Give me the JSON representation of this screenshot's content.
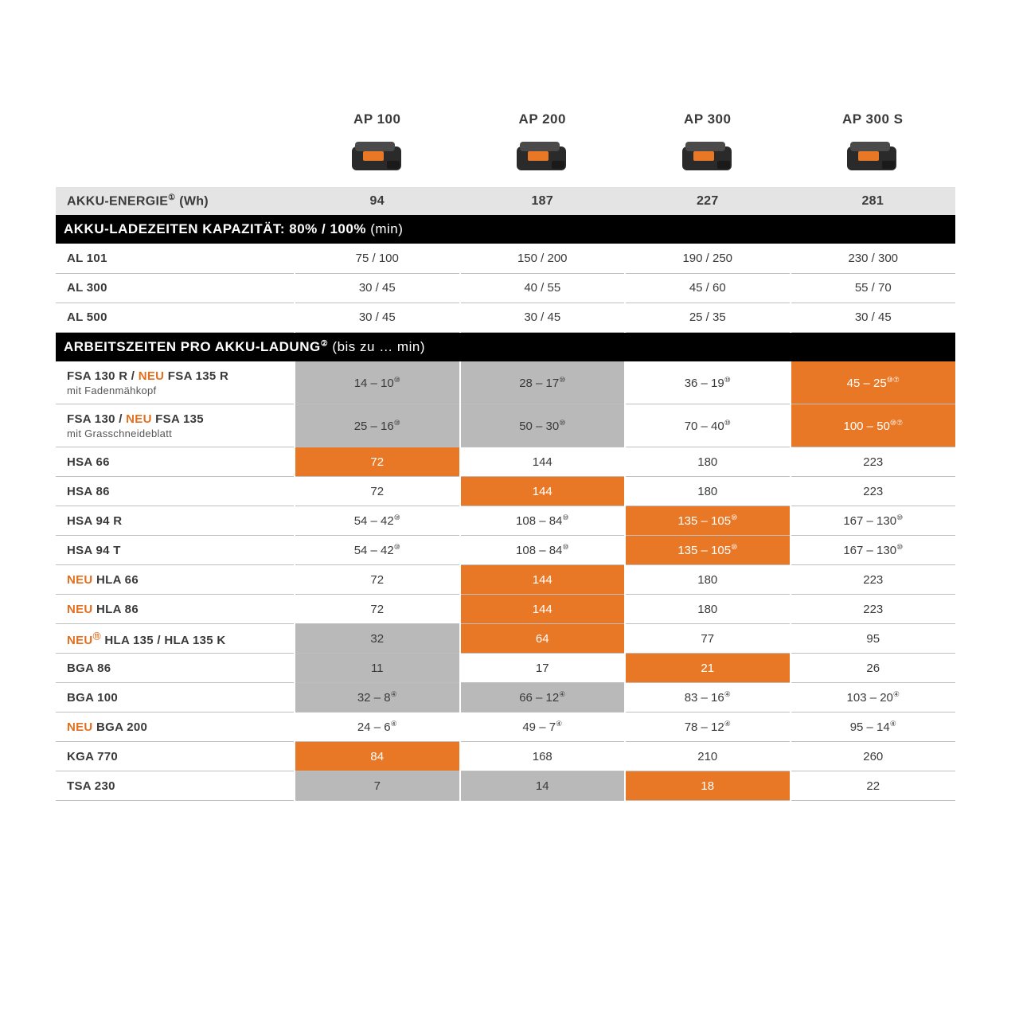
{
  "colors": {
    "orange": "#e36f1e",
    "orange_bg": "#e97826",
    "gray_bg": "#b9b9b9",
    "section_light": "#e4e4e4",
    "border": "#bfbfbf",
    "black": "#000000",
    "white": "#ffffff",
    "text": "#3a3a3a"
  },
  "headers": [
    "AP 100",
    "AP 200",
    "AP 300",
    "AP 300 S"
  ],
  "energy": {
    "label": "AKKU-ENERGIE",
    "sup": "①",
    "unit": "(Wh)",
    "values": [
      "94",
      "187",
      "227",
      "281"
    ]
  },
  "section_charge": {
    "title": "AKKU-LADEZEITEN KAPAZITÄT: 80% / 100%",
    "unit": "(min)"
  },
  "charge_rows": [
    {
      "label": "AL 101",
      "values": [
        "75 / 100",
        "150 / 200",
        "190 / 250",
        "230 / 300"
      ]
    },
    {
      "label": "AL 300",
      "values": [
        "30 / 45",
        "40 / 55",
        "45 / 60",
        "55 / 70"
      ]
    },
    {
      "label": "AL 500",
      "values": [
        "30 / 45",
        "30 / 45",
        "25 / 35",
        "30 / 45"
      ]
    }
  ],
  "section_work": {
    "title": "ARBEITSZEITEN PRO AKKU-LADUNG",
    "sup": "②",
    "unit": "(bis zu … min)"
  },
  "work_rows": [
    {
      "tall": true,
      "label_parts": [
        {
          "t": "FSA 130 R / "
        },
        {
          "t": "NEU",
          "neu": true
        },
        {
          "t": " FSA 135 R"
        }
      ],
      "sub": "mit Fadenmähkopf",
      "cells": [
        {
          "v": "14 – 10",
          "sup": "⑩",
          "bg": "gray"
        },
        {
          "v": "28 – 17",
          "sup": "⑩",
          "bg": "gray"
        },
        {
          "v": "36 – 19",
          "sup": "⑩",
          "bg": "white"
        },
        {
          "v": "45 – 25",
          "sup": "⑩⑦",
          "bg": "orange"
        }
      ]
    },
    {
      "tall": true,
      "label_parts": [
        {
          "t": "FSA 130 / "
        },
        {
          "t": "NEU",
          "neu": true
        },
        {
          "t": " FSA 135"
        }
      ],
      "sub": "mit Grasschneideblatt",
      "cells": [
        {
          "v": "25 – 16",
          "sup": "⑩",
          "bg": "gray"
        },
        {
          "v": "50 – 30",
          "sup": "⑩",
          "bg": "gray"
        },
        {
          "v": "70 – 40",
          "sup": "⑩",
          "bg": "white"
        },
        {
          "v": "100 – 50",
          "sup": "⑩⑦",
          "bg": "orange"
        }
      ]
    },
    {
      "label_parts": [
        {
          "t": "HSA 66"
        }
      ],
      "cells": [
        {
          "v": "72",
          "bg": "orange"
        },
        {
          "v": "144",
          "bg": "white"
        },
        {
          "v": "180",
          "bg": "white"
        },
        {
          "v": "223",
          "bg": "white"
        }
      ]
    },
    {
      "label_parts": [
        {
          "t": "HSA 86"
        }
      ],
      "cells": [
        {
          "v": "72",
          "bg": "white"
        },
        {
          "v": "144",
          "bg": "orange"
        },
        {
          "v": "180",
          "bg": "white"
        },
        {
          "v": "223",
          "bg": "white"
        }
      ]
    },
    {
      "label_parts": [
        {
          "t": "HSA 94 R"
        }
      ],
      "cells": [
        {
          "v": "54 – 42",
          "sup": "⑩",
          "bg": "white"
        },
        {
          "v": "108 – 84",
          "sup": "⑩",
          "bg": "white"
        },
        {
          "v": "135 – 105",
          "sup": "⑩",
          "bg": "orange"
        },
        {
          "v": "167 – 130",
          "sup": "⑩",
          "bg": "white"
        }
      ]
    },
    {
      "label_parts": [
        {
          "t": "HSA 94 T"
        }
      ],
      "cells": [
        {
          "v": "54 – 42",
          "sup": "⑩",
          "bg": "white"
        },
        {
          "v": "108 – 84",
          "sup": "⑩",
          "bg": "white"
        },
        {
          "v": "135 – 105",
          "sup": "⑩",
          "bg": "orange"
        },
        {
          "v": "167 – 130",
          "sup": "⑩",
          "bg": "white"
        }
      ]
    },
    {
      "label_parts": [
        {
          "t": "NEU",
          "neu": true
        },
        {
          "t": " HLA 66"
        }
      ],
      "cells": [
        {
          "v": "72",
          "bg": "white"
        },
        {
          "v": "144",
          "bg": "orange"
        },
        {
          "v": "180",
          "bg": "white"
        },
        {
          "v": "223",
          "bg": "white"
        }
      ]
    },
    {
      "label_parts": [
        {
          "t": "NEU",
          "neu": true
        },
        {
          "t": " HLA 86"
        }
      ],
      "cells": [
        {
          "v": "72",
          "bg": "white"
        },
        {
          "v": "144",
          "bg": "orange"
        },
        {
          "v": "180",
          "bg": "white"
        },
        {
          "v": "223",
          "bg": "white"
        }
      ]
    },
    {
      "label_parts": [
        {
          "t": "NEU",
          "neu": true,
          "sup": "⑪"
        },
        {
          "t": " HLA 135 /  HLA 135 K"
        }
      ],
      "cells": [
        {
          "v": "32",
          "bg": "gray"
        },
        {
          "v": "64",
          "bg": "orange"
        },
        {
          "v": "77",
          "bg": "white"
        },
        {
          "v": "95",
          "bg": "white"
        }
      ]
    },
    {
      "label_parts": [
        {
          "t": "BGA 86"
        }
      ],
      "cells": [
        {
          "v": "11",
          "bg": "gray"
        },
        {
          "v": "17",
          "bg": "white"
        },
        {
          "v": "21",
          "bg": "orange"
        },
        {
          "v": "26",
          "bg": "white"
        }
      ]
    },
    {
      "label_parts": [
        {
          "t": "BGA 100"
        }
      ],
      "cells": [
        {
          "v": "32 – 8",
          "sup": "④",
          "bg": "gray"
        },
        {
          "v": "66 – 12",
          "sup": "④",
          "bg": "gray"
        },
        {
          "v": "83 – 16",
          "sup": "④",
          "bg": "white"
        },
        {
          "v": "103 – 20",
          "sup": "④",
          "bg": "white"
        }
      ]
    },
    {
      "label_parts": [
        {
          "t": "NEU",
          "neu": true
        },
        {
          "t": " BGA 200"
        }
      ],
      "cells": [
        {
          "v": "24 – 6",
          "sup": "④",
          "bg": "white"
        },
        {
          "v": "49 – 7",
          "sup": "④",
          "bg": "white"
        },
        {
          "v": "78 – 12",
          "sup": "④",
          "bg": "white"
        },
        {
          "v": "95 – 14",
          "sup": "④",
          "bg": "white"
        }
      ]
    },
    {
      "label_parts": [
        {
          "t": "KGA 770"
        }
      ],
      "cells": [
        {
          "v": "84",
          "bg": "orange"
        },
        {
          "v": "168",
          "bg": "white"
        },
        {
          "v": "210",
          "bg": "white"
        },
        {
          "v": "260",
          "bg": "white"
        }
      ]
    },
    {
      "label_parts": [
        {
          "t": "TSA 230"
        }
      ],
      "cells": [
        {
          "v": "7",
          "bg": "gray"
        },
        {
          "v": "14",
          "bg": "gray"
        },
        {
          "v": "18",
          "bg": "orange"
        },
        {
          "v": "22",
          "bg": "white"
        }
      ]
    }
  ]
}
